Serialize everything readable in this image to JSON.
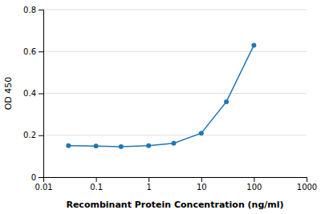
{
  "chart_data": {
    "type": "line",
    "x": [
      0.03,
      0.1,
      0.3,
      1,
      3,
      10,
      30,
      100
    ],
    "values": [
      0.15,
      0.148,
      0.145,
      0.15,
      0.162,
      0.21,
      0.36,
      0.63
    ],
    "xlabel": "Recombinant Protein Concentration (ng/ml)",
    "ylabel": "OD 450",
    "xlim": [
      0.01,
      1000
    ],
    "xticks": [
      0.01,
      0.1,
      1,
      10,
      100,
      1000
    ],
    "ylim": [
      0,
      0.8
    ],
    "yticks": [
      0,
      0.2,
      0.4,
      0.6,
      0.8
    ],
    "log": "x",
    "grid": "y",
    "marker": "circle"
  }
}
